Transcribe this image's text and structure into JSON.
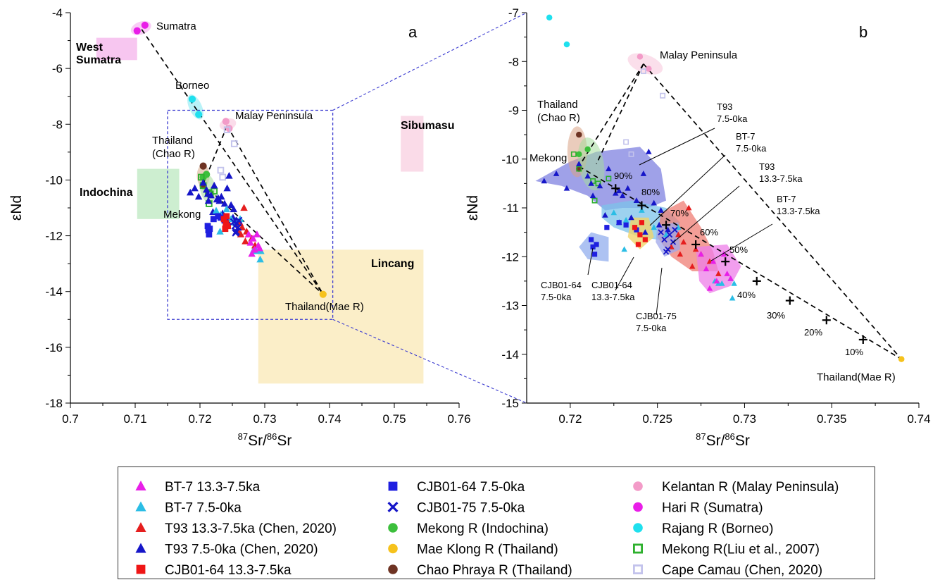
{
  "chart_data": [
    {
      "type": "scatter",
      "panel_label": "a",
      "xlabel_iso": "87",
      "xlabel_mid": "Sr/",
      "xlabel_iso2": "86",
      "xlabel_end": "Sr",
      "ylabel": "εNd",
      "xlim": [
        0.7,
        0.76
      ],
      "ylim": [
        -18,
        -4
      ],
      "x_ticks": [
        "0.7",
        "0.71",
        "0.72",
        "0.73",
        "0.74",
        "0.75",
        "0.76"
      ],
      "y_ticks": [
        "-4",
        "-6",
        "-8",
        "-10",
        "-12",
        "-14",
        "-16",
        "-18"
      ],
      "regions": [
        {
          "label": "West Sumatra",
          "label_line1": "West",
          "label_line2": "Sumatra",
          "x": [
            0.704,
            0.7103
          ],
          "y": [
            -5.7,
            -4.9
          ],
          "color": "#f7c6f0"
        },
        {
          "label": "Indochina",
          "x": [
            0.7103,
            0.7168
          ],
          "y": [
            -11.4,
            -9.6
          ],
          "color": "#cdeed0"
        },
        {
          "label": "Sibumasu",
          "x": [
            0.751,
            0.7545
          ],
          "y": [
            -9.7,
            -7.7
          ],
          "color": "#fadbe8"
        },
        {
          "label": "Lincang",
          "x": [
            0.729,
            0.7545
          ],
          "y": [
            -17.3,
            -12.5
          ],
          "color": "#fbeec8"
        }
      ],
      "zoom_box": {
        "x": [
          0.715,
          0.7405
        ],
        "y": [
          -15,
          -7.5
        ]
      },
      "annotations": [
        "Sumatra",
        "Borneo",
        "Malay Peninsula",
        "Thailand",
        "(Chao R)",
        "Mekong",
        "Thailand(Mae R)"
      ],
      "mixing_lines": [
        {
          "from": [
            0.711,
            -4.6
          ],
          "to": [
            0.739,
            -14.1
          ]
        },
        {
          "from": [
            0.7242,
            -8.05
          ],
          "to": [
            0.739,
            -14.1
          ]
        },
        {
          "from": [
            0.7242,
            -8.05
          ],
          "to": [
            0.7205,
            -10.15
          ]
        },
        {
          "from": [
            0.7205,
            -10.15
          ],
          "to": [
            0.739,
            -14.1
          ]
        }
      ],
      "series": [
        {
          "name": "Hari R (Sumatra)",
          "marker": "circle",
          "color": "#e91ee8",
          "x": [
            0.7103,
            0.7115
          ],
          "y": [
            -4.65,
            -4.45
          ]
        },
        {
          "name": "Rajang R (Borneo)",
          "marker": "circle",
          "color": "#1fe0ee",
          "x": [
            0.7188,
            0.7198
          ],
          "y": [
            -7.1,
            -7.65
          ]
        },
        {
          "name": "Kelantan R (Malay Peninsula)",
          "marker": "circle",
          "color": "#f39bc8",
          "x": [
            0.724,
            0.7245
          ],
          "y": [
            -7.9,
            -8.15
          ]
        },
        {
          "name": "Chao Phraya R (Thailand)",
          "marker": "circle",
          "color": "#6e3323",
          "x": [
            0.7205,
            0.7205
          ],
          "y": [
            -9.5,
            -10.2
          ]
        },
        {
          "name": "Mekong R (Indochina)",
          "marker": "circle",
          "color": "#3cbf3c",
          "x": [
            0.7205,
            0.721
          ],
          "y": [
            -9.9,
            -9.8
          ]
        },
        {
          "name": "Mae Klong R (Thailand)",
          "marker": "circle",
          "color": "#f6c21c",
          "x": [
            0.739
          ],
          "y": [
            -14.1
          ]
        },
        {
          "name": "Mekong R(Liu et al., 2007)",
          "marker": "square-open",
          "color": "#2db02d",
          "x": [
            0.7202,
            0.7213,
            0.7216,
            0.7222,
            0.7214,
            0.7205
          ],
          "y": [
            -9.9,
            -10.45,
            -10.5,
            -10.4,
            -10.85,
            -10.2
          ]
        },
        {
          "name": "Cape Camau (Chen, 2020)",
          "marker": "square-open",
          "color": "#c3c3ec",
          "x": [
            0.7242,
            0.7253,
            0.7232,
            0.7235
          ],
          "y": [
            -8.2,
            -8.7,
            -9.65,
            -9.9
          ]
        },
        {
          "name": "T93 7.5-0ka (Chen, 2020)",
          "marker": "triangle",
          "color": "#1616c8",
          "x": [
            0.7185,
            0.7192,
            0.7198,
            0.7205,
            0.721,
            0.7212,
            0.7217,
            0.7222,
            0.7228,
            0.723,
            0.7238,
            0.7242,
            0.7245,
            0.7248,
            0.7252,
            0.7235,
            0.7228,
            0.722,
            0.7243,
            0.7251,
            0.7256,
            0.7233,
            0.7226,
            0.7213
          ],
          "y": [
            -10.45,
            -10.3,
            -10.6,
            -10.1,
            -10.35,
            -10.5,
            -10.55,
            -10.2,
            -10.65,
            -10.75,
            -10.85,
            -10.3,
            -9.85,
            -10.9,
            -11.05,
            -11.2,
            -11.3,
            -11.15,
            -11.5,
            -11.35,
            -11.45,
            -10.6,
            -10.7,
            -10.75
          ]
        },
        {
          "name": "BT-7 7.5-0ka",
          "marker": "triangle",
          "color": "#2bbde5",
          "x": [
            0.7225,
            0.7232,
            0.7241,
            0.7248,
            0.7255,
            0.7262,
            0.7283,
            0.7287,
            0.7292,
            0.7294,
            0.7285,
            0.7231,
            0.7293
          ],
          "y": [
            -11.1,
            -11.25,
            -11.05,
            -11.4,
            -11.55,
            -11.4,
            -12.5,
            -12.55,
            -12.45,
            -12.55,
            -12.55,
            -11.85,
            -12.85
          ]
        },
        {
          "name": "T93 13.3-7.5ka (Chen, 2020)",
          "marker": "triangle",
          "color": "#e51e1e",
          "x": [
            0.7262,
            0.7265,
            0.7268,
            0.7272,
            0.7275,
            0.728,
            0.7285,
            0.727,
            0.7258,
            0.7263
          ],
          "y": [
            -11.55,
            -11.7,
            -11.0,
            -11.85,
            -11.95,
            -12.1,
            -12.35,
            -12.2,
            -11.8,
            -11.95
          ]
        },
        {
          "name": "BT-7 13.3-7.5ka",
          "marker": "triangle",
          "color": "#e81fe8",
          "x": [
            0.7275,
            0.7278,
            0.7282,
            0.7284,
            0.7288,
            0.729,
            0.7292,
            0.728
          ],
          "y": [
            -11.95,
            -12.25,
            -12.1,
            -12.5,
            -11.95,
            -12.35,
            -12.45,
            -12.65
          ]
        },
        {
          "name": "CJB01-64 7.5-0ka",
          "marker": "square",
          "color": "#1f1fe0",
          "x": [
            0.7212,
            0.7213,
            0.7214,
            0.7215,
            0.7221,
            0.7228,
            0.7232,
            0.7238
          ],
          "y": [
            -11.65,
            -11.8,
            -11.95,
            -11.75,
            -11.4,
            -11.3,
            -11.35,
            -11.45
          ]
        },
        {
          "name": "CJB01-64 13.3-7.5ka",
          "marker": "square",
          "color": "#ef1616",
          "x": [
            0.7237,
            0.724,
            0.7241,
            0.7243,
            0.7239
          ],
          "y": [
            -11.4,
            -11.55,
            -11.3,
            -11.65,
            -11.75
          ]
        },
        {
          "name": "CJB01-75 7.5-0ka",
          "marker": "x",
          "color": "#1616c8",
          "x": [
            0.7252,
            0.7254,
            0.7256,
            0.7257,
            0.7259,
            0.726,
            0.7255
          ],
          "y": [
            -11.5,
            -11.65,
            -11.85,
            -11.55,
            -11.7,
            -11.45,
            -11.9
          ]
        }
      ]
    },
    {
      "type": "scatter",
      "panel_label": "b",
      "xlabel_iso": "87",
      "xlabel_mid": "Sr/",
      "xlabel_iso2": "86",
      "xlabel_end": "Sr",
      "ylabel": "εNd",
      "xlim": [
        0.7175,
        0.74
      ],
      "ylim": [
        -15,
        -7
      ],
      "x_ticks": [
        "0.72",
        "0.725",
        "0.73",
        "0.735",
        "0.74"
      ],
      "y_ticks": [
        "-7",
        "-8",
        "-9",
        "-10",
        "-11",
        "-12",
        "-13",
        "-14",
        "-15"
      ],
      "annotations": [
        {
          "text": "Malay Peninsula"
        },
        {
          "text": "Thailand"
        },
        {
          "text": "(Chao R)"
        },
        {
          "text": "Mekong"
        },
        {
          "text": "Thailand(Mae R)"
        },
        {
          "text": "T93",
          "text2": "7.5-0ka"
        },
        {
          "text": "BT-7",
          "text2": "7.5-0ka"
        },
        {
          "text": "T93",
          "text2": "13.3-7.5ka"
        },
        {
          "text": "BT-7",
          "text2": "13.3-7.5ka"
        },
        {
          "text": "CJB01-64",
          "text2": "7.5-0ka"
        },
        {
          "text": "CJB01-64",
          "text2": "13.3-7.5ka"
        },
        {
          "text": "CJB01-75",
          "text2": "7.5-0ka"
        }
      ],
      "mixing_percent_labels": [
        "90%",
        "80%",
        "70%",
        "60%",
        "50%",
        "40%",
        "30%",
        "20%",
        "10%"
      ],
      "mixing_points": {
        "x": [
          0.7226,
          0.7241,
          0.7255,
          0.7272,
          0.7289,
          0.7307,
          0.7326,
          0.7347,
          0.7368
        ],
        "y": [
          -10.6,
          -10.95,
          -11.35,
          -11.75,
          -12.1,
          -12.5,
          -12.9,
          -13.3,
          -13.7
        ]
      },
      "mixing_lines": [
        {
          "from": [
            0.7242,
            -8.05
          ],
          "to": [
            0.739,
            -14.1
          ]
        },
        {
          "from": [
            0.7242,
            -8.05
          ],
          "to": [
            0.7205,
            -10.15
          ]
        },
        {
          "from": [
            0.7205,
            -10.15
          ],
          "to": [
            0.739,
            -14.1
          ]
        },
        {
          "from": [
            0.7242,
            -8.05
          ],
          "to": [
            0.7215,
            -10.1
          ]
        }
      ]
    }
  ],
  "legend": [
    {
      "label": "BT-7 13.3-7.5ka",
      "marker": "triangle",
      "color": "#e81fe8"
    },
    {
      "label": "BT-7 7.5-0ka",
      "marker": "triangle",
      "color": "#2bbde5"
    },
    {
      "label": "T93 13.3-7.5ka (Chen, 2020)",
      "marker": "triangle",
      "color": "#e51e1e"
    },
    {
      "label": "T93 7.5-0ka (Chen, 2020)",
      "marker": "triangle",
      "color": "#1616c8"
    },
    {
      "label": "CJB01-64 13.3-7.5ka",
      "marker": "square",
      "color": "#ef1616"
    },
    {
      "label": "CJB01-64 7.5-0ka",
      "marker": "square",
      "color": "#1f1fe0"
    },
    {
      "label": "CJB01-75 7.5-0ka",
      "marker": "x",
      "color": "#1616c8"
    },
    {
      "label": "Mekong R (Indochina)",
      "marker": "circle",
      "color": "#3cbf3c"
    },
    {
      "label": "Mae Klong R (Thailand)",
      "marker": "circle",
      "color": "#f6c21c"
    },
    {
      "label": "Chao Phraya R (Thailand)",
      "marker": "circle",
      "color": "#6e3323"
    },
    {
      "label": "Kelantan R (Malay Peninsula)",
      "marker": "circle",
      "color": "#f39bc8"
    },
    {
      "label": "Hari R (Sumatra)",
      "marker": "circle",
      "color": "#e91ee8"
    },
    {
      "label": "Rajang R (Borneo)",
      "marker": "circle",
      "color": "#1fe0ee"
    },
    {
      "label": "Mekong R(Liu et al., 2007)",
      "marker": "square-open",
      "color": "#2db02d"
    },
    {
      "label": "Cape Camau (Chen, 2020)",
      "marker": "square-open",
      "color": "#c3c3ec"
    }
  ]
}
